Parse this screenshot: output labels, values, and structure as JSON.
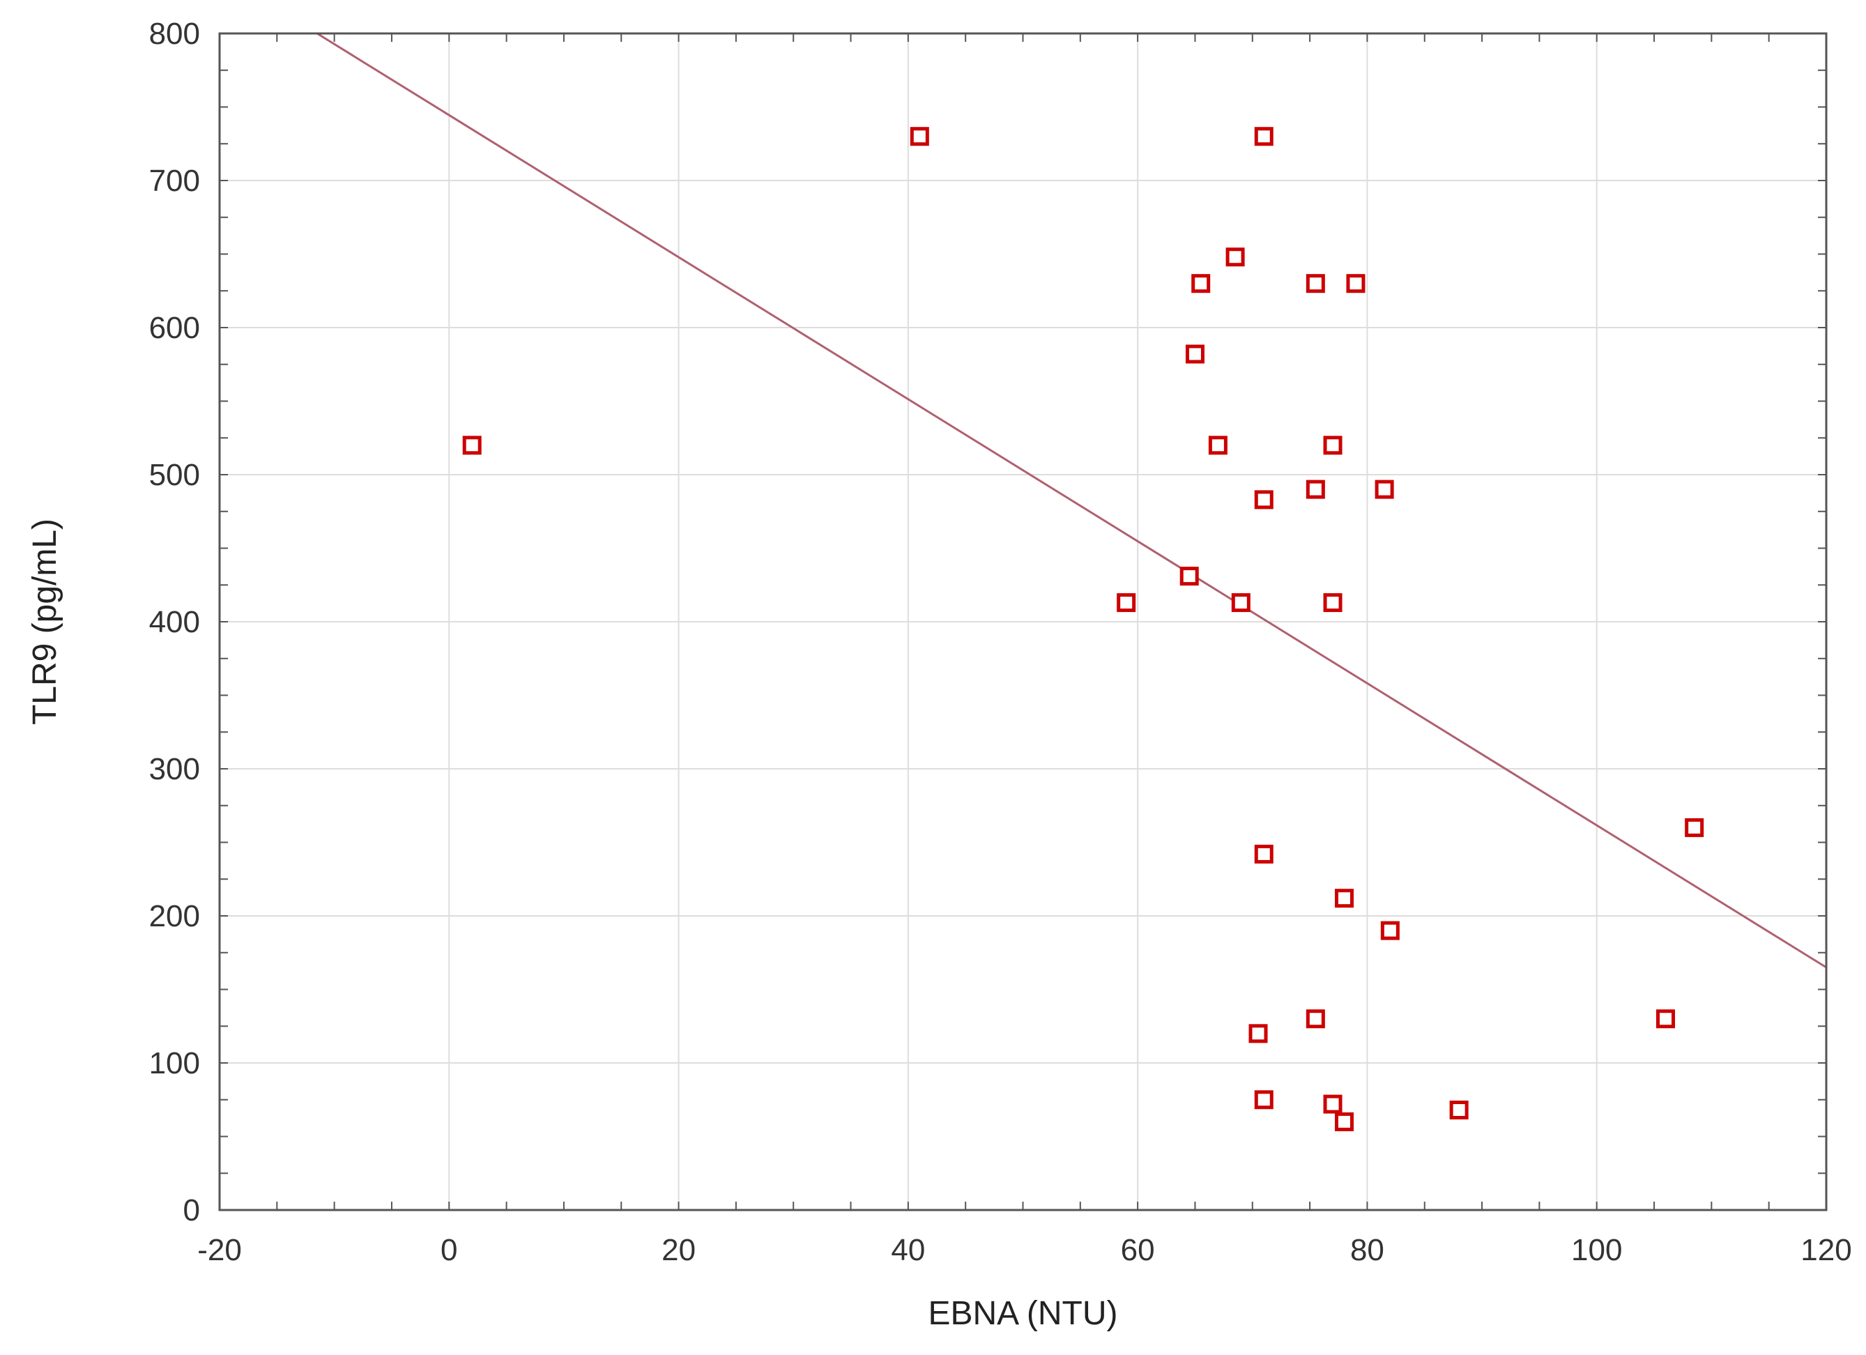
{
  "chart_data": {
    "type": "scatter",
    "title": "",
    "xlabel": "EBNA (NTU)",
    "ylabel": "TLR9 (pg/mL)",
    "xlim": [
      -20,
      120
    ],
    "ylim": [
      0,
      800
    ],
    "xticks": [
      -20,
      0,
      20,
      40,
      60,
      80,
      100,
      120
    ],
    "yticks": [
      0,
      100,
      200,
      300,
      400,
      500,
      600,
      700,
      800
    ],
    "grid": true,
    "legend": "none",
    "marker": "hollow-square",
    "marker_color": "#cc0000",
    "line_color": "#b06070",
    "points": [
      {
        "x": 2,
        "y": 520
      },
      {
        "x": 41,
        "y": 730
      },
      {
        "x": 59,
        "y": 413
      },
      {
        "x": 64.5,
        "y": 431
      },
      {
        "x": 65,
        "y": 582
      },
      {
        "x": 65.5,
        "y": 630
      },
      {
        "x": 67,
        "y": 520
      },
      {
        "x": 68.5,
        "y": 648
      },
      {
        "x": 69,
        "y": 413
      },
      {
        "x": 71,
        "y": 730
      },
      {
        "x": 71,
        "y": 483
      },
      {
        "x": 71,
        "y": 242
      },
      {
        "x": 70.5,
        "y": 120
      },
      {
        "x": 71,
        "y": 75
      },
      {
        "x": 75.5,
        "y": 630
      },
      {
        "x": 75.5,
        "y": 490
      },
      {
        "x": 75.5,
        "y": 130
      },
      {
        "x": 77,
        "y": 520
      },
      {
        "x": 77,
        "y": 413
      },
      {
        "x": 77,
        "y": 72
      },
      {
        "x": 78,
        "y": 212
      },
      {
        "x": 78,
        "y": 60
      },
      {
        "x": 79,
        "y": 630
      },
      {
        "x": 81.5,
        "y": 490
      },
      {
        "x": 82,
        "y": 190
      },
      {
        "x": 88,
        "y": 68
      },
      {
        "x": 106,
        "y": 130
      },
      {
        "x": 108.5,
        "y": 260
      }
    ],
    "fit_line": {
      "x": [
        -11.5,
        120
      ],
      "y": [
        800,
        165
      ]
    }
  }
}
